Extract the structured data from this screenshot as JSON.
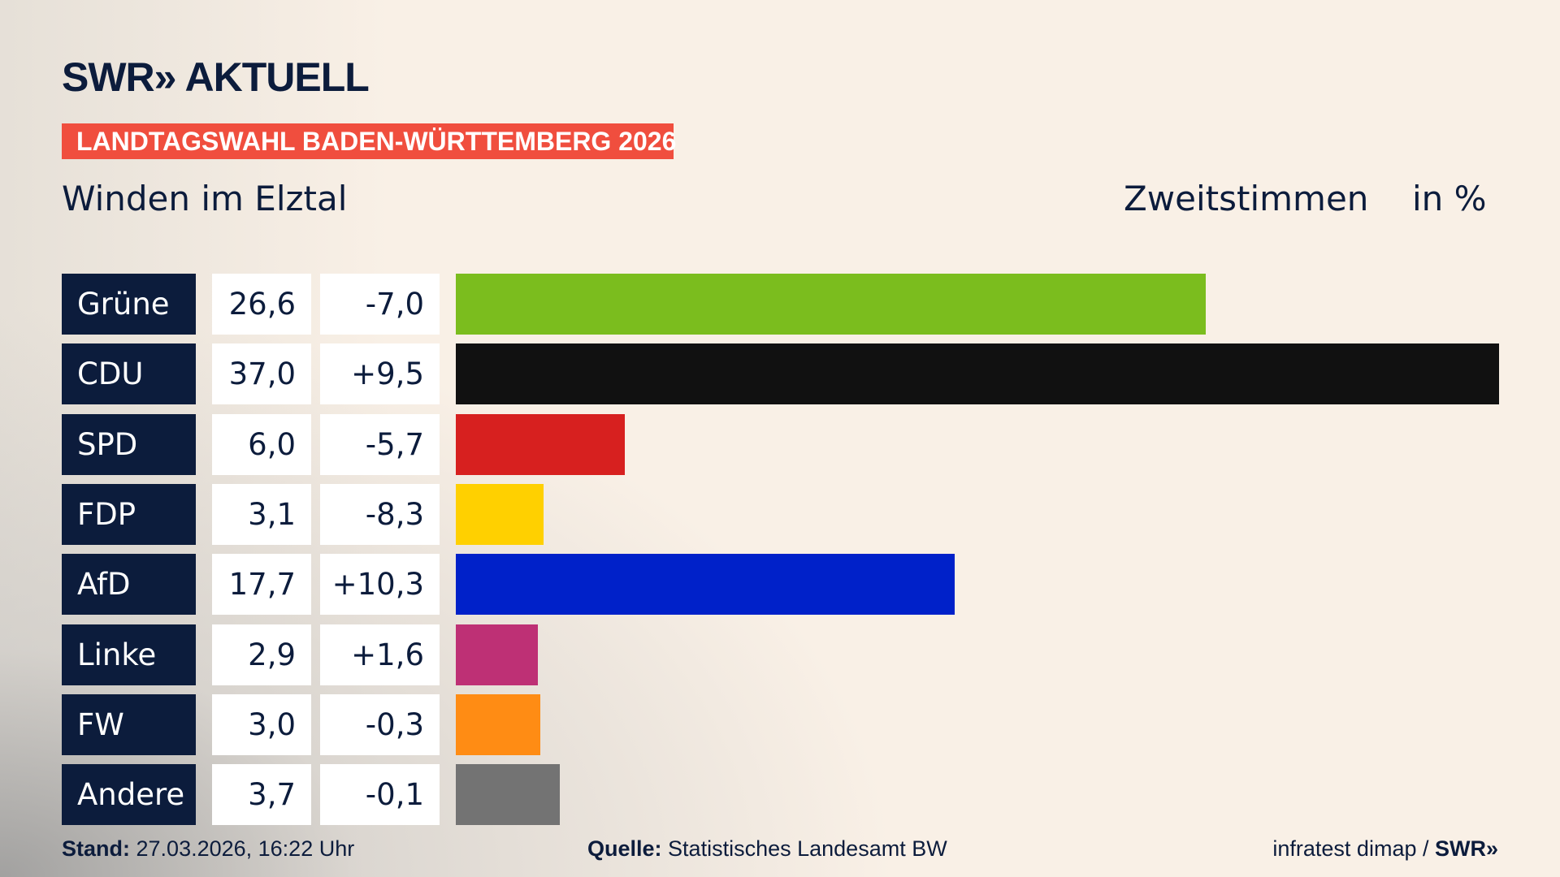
{
  "header": {
    "logo": "SWR» AKTUELL",
    "banner": "LANDTAGSWAHL BADEN-WÜRTTEMBERG 2026",
    "location": "Winden im Elztal",
    "metric": "Zweitstimmen",
    "unit": "in %"
  },
  "chart_data": {
    "type": "bar",
    "orientation": "horizontal",
    "categories": [
      "Grüne",
      "CDU",
      "SPD",
      "FDP",
      "AfD",
      "Linke",
      "FW",
      "Andere"
    ],
    "values": [
      26.6,
      37.0,
      6.0,
      3.1,
      17.7,
      2.9,
      3.0,
      3.7
    ],
    "value_labels": [
      "26,6",
      "37,0",
      "6,0",
      "3,1",
      "17,7",
      "2,9",
      "3,0",
      "3,7"
    ],
    "diff_labels": [
      "-7,0",
      "+9,5",
      "-5,7",
      "-8,3",
      "+10,3",
      "+1,6",
      "-0,3",
      "-0,1"
    ],
    "colors": [
      "#7bbd1e",
      "#111111",
      "#d7201f",
      "#ffd000",
      "#0021c9",
      "#be3075",
      "#ff8c14",
      "#737373"
    ],
    "xlim": [
      0,
      37.0
    ]
  },
  "footer": {
    "stand_label": "Stand:",
    "stand_value": "27.03.2026, 16:22 Uhr",
    "source_label": "Quelle:",
    "source_value": "Statistisches Landesamt BW",
    "credit": "infratest dimap / ",
    "credit_logo": "SWR»"
  }
}
